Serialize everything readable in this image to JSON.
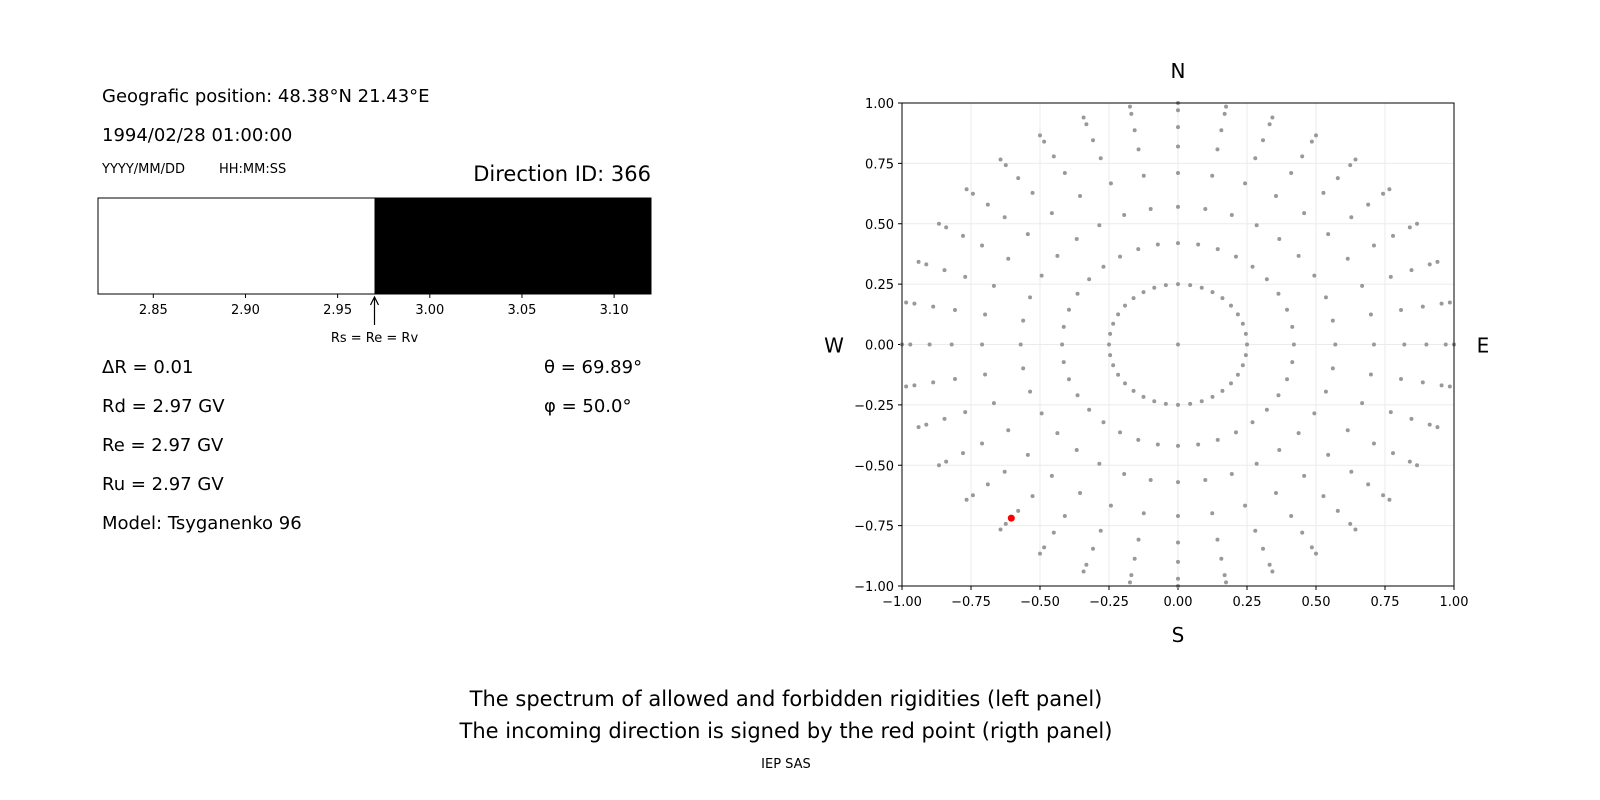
{
  "header": {
    "position": "Geografic position: 48.38°N 21.43°E",
    "datetime": "1994/02/28 01:00:00",
    "date_format": "YYYY/MM/DD",
    "time_format": "HH:MM:SS",
    "direction_id": "Direction ID: 366"
  },
  "parameters": {
    "left": [
      "ΔR = 0.01",
      "Rd = 2.97 GV",
      "Re = 2.97 GV",
      "Ru = 2.97 GV",
      "Model: Tsyganenko 96"
    ],
    "right": [
      "θ = 69.89°",
      "φ = 50.0°"
    ]
  },
  "chart_data": [
    {
      "type": "spectrum",
      "segments": [
        {
          "from": 2.82,
          "to": 2.97,
          "color": "#ffffff"
        },
        {
          "from": 2.97,
          "to": 3.12,
          "color": "#000000"
        }
      ],
      "xlim": [
        2.82,
        3.12
      ],
      "xticks": [
        2.85,
        {
          "value": 2.9,
          "label": "2.90"
        },
        2.95,
        {
          "value": 3,
          "label": "3.00"
        },
        3.05,
        {
          "value": 3.1,
          "label": "3.10"
        }
      ],
      "annotation": {
        "text": "Rs = Re = Rv",
        "x": 2.97
      }
    },
    {
      "type": "scatter",
      "color": "#999999",
      "x": [
        0,
        0.25,
        0.42,
        0.57,
        0.71,
        0.82,
        0.9,
        0.97,
        1,
        0.246,
        0.414,
        0.561,
        0.699,
        0.808,
        0.887,
        0.955,
        0.985,
        0.235,
        0.395,
        0.536,
        0.667,
        0.771,
        0.846,
        0.912,
        0.94,
        0.217,
        0.364,
        0.494,
        0.615,
        0.71,
        0.779,
        0.84,
        0.866,
        0.192,
        0.322,
        0.437,
        0.544,
        0.628,
        0.689,
        0.743,
        0.766,
        0.161,
        0.27,
        0.367,
        0.457,
        0.527,
        0.579,
        0.624,
        0.643,
        0.125,
        0.21,
        0.285,
        0.355,
        0.41,
        0.45,
        0.485,
        0.5,
        0.086,
        0.144,
        0.195,
        0.243,
        0.28,
        0.308,
        0.332,
        0.342,
        0.044,
        0.073,
        0.099,
        0.124,
        0.143,
        0.157,
        0.169,
        0.174,
        0,
        0,
        0,
        0,
        0,
        0,
        0,
        0,
        -0.044,
        -0.073,
        -0.099,
        -0.124,
        -0.143,
        -0.157,
        -0.169,
        -0.174,
        -0.086,
        -0.144,
        -0.195,
        -0.243,
        -0.28,
        -0.308,
        -0.332,
        -0.342,
        -0.125,
        -0.21,
        -0.285,
        -0.355,
        -0.41,
        -0.45,
        -0.485,
        -0.5,
        -0.161,
        -0.27,
        -0.367,
        -0.457,
        -0.527,
        -0.579,
        -0.624,
        -0.643,
        -0.192,
        -0.322,
        -0.437,
        -0.544,
        -0.628,
        -0.689,
        -0.743,
        -0.766,
        -0.217,
        -0.364,
        -0.494,
        -0.615,
        -0.71,
        -0.779,
        -0.84,
        -0.866,
        -0.235,
        -0.395,
        -0.536,
        -0.667,
        -0.771,
        -0.846,
        -0.912,
        -0.94,
        -0.246,
        -0.414,
        -0.561,
        -0.699,
        -0.808,
        -0.887,
        -0.955,
        -0.985,
        -0.25,
        -0.42,
        -0.57,
        -0.71,
        -0.82,
        -0.9,
        -0.97,
        -1,
        -0.246,
        -0.414,
        -0.561,
        -0.699,
        -0.808,
        -0.887,
        -0.955,
        -0.985,
        -0.235,
        -0.395,
        -0.536,
        -0.667,
        -0.771,
        -0.846,
        -0.912,
        -0.94,
        -0.217,
        -0.364,
        -0.494,
        -0.615,
        -0.71,
        -0.779,
        -0.84,
        -0.866,
        -0.192,
        -0.322,
        -0.437,
        -0.544,
        -0.628,
        -0.689,
        -0.743,
        -0.766,
        -0.161,
        -0.27,
        -0.367,
        -0.457,
        -0.527,
        -0.579,
        -0.624,
        -0.643,
        -0.125,
        -0.21,
        -0.285,
        -0.355,
        -0.41,
        -0.45,
        -0.485,
        -0.5,
        -0.086,
        -0.144,
        -0.195,
        -0.243,
        -0.28,
        -0.308,
        -0.332,
        -0.342,
        -0.044,
        -0.073,
        -0.099,
        -0.124,
        -0.143,
        -0.157,
        -0.169,
        -0.174,
        0,
        0,
        0,
        0,
        0,
        0,
        0,
        0,
        0.044,
        0.073,
        0.099,
        0.124,
        0.143,
        0.157,
        0.169,
        0.174,
        0.086,
        0.144,
        0.195,
        0.243,
        0.28,
        0.308,
        0.332,
        0.342,
        0.125,
        0.21,
        0.285,
        0.355,
        0.41,
        0.45,
        0.485,
        0.5,
        0.161,
        0.27,
        0.367,
        0.457,
        0.527,
        0.579,
        0.624,
        0.643,
        0.192,
        0.322,
        0.437,
        0.544,
        0.628,
        0.689,
        0.743,
        0.766,
        0.217,
        0.364,
        0.494,
        0.615,
        0.71,
        0.779,
        0.84,
        0.866,
        0.235,
        0.395,
        0.536,
        0.667,
        0.771,
        0.846,
        0.912,
        0.94,
        0.246,
        0.414,
        0.561,
        0.699,
        0.808,
        0.887,
        0.955,
        0.985
      ],
      "y": [
        0,
        0,
        0,
        0,
        0,
        0,
        0,
        0,
        0,
        0.044,
        0.073,
        0.099,
        0.124,
        0.143,
        0.157,
        0.169,
        0.174,
        0.086,
        0.144,
        0.195,
        0.243,
        0.28,
        0.308,
        0.332,
        0.342,
        0.125,
        0.21,
        0.285,
        0.355,
        0.41,
        0.45,
        0.485,
        0.5,
        0.161,
        0.27,
        0.367,
        0.457,
        0.527,
        0.579,
        0.624,
        0.643,
        0.192,
        0.322,
        0.437,
        0.544,
        0.628,
        0.689,
        0.743,
        0.766,
        0.217,
        0.364,
        0.494,
        0.615,
        0.71,
        0.779,
        0.84,
        0.866,
        0.235,
        0.395,
        0.536,
        0.667,
        0.771,
        0.846,
        0.912,
        0.94,
        0.246,
        0.414,
        0.561,
        0.699,
        0.808,
        0.887,
        0.955,
        0.985,
        0.25,
        0.42,
        0.57,
        0.71,
        0.82,
        0.9,
        0.97,
        1,
        0.246,
        0.414,
        0.561,
        0.699,
        0.808,
        0.887,
        0.955,
        0.985,
        0.235,
        0.395,
        0.536,
        0.667,
        0.771,
        0.846,
        0.912,
        0.94,
        0.217,
        0.364,
        0.494,
        0.615,
        0.71,
        0.779,
        0.84,
        0.866,
        0.192,
        0.322,
        0.437,
        0.544,
        0.628,
        0.689,
        0.743,
        0.766,
        0.161,
        0.27,
        0.367,
        0.457,
        0.527,
        0.579,
        0.624,
        0.643,
        0.125,
        0.21,
        0.285,
        0.355,
        0.41,
        0.45,
        0.485,
        0.5,
        0.086,
        0.144,
        0.195,
        0.243,
        0.28,
        0.308,
        0.332,
        0.342,
        0.044,
        0.073,
        0.099,
        0.124,
        0.143,
        0.157,
        0.169,
        0.174,
        0,
        0,
        0,
        0,
        0,
        0,
        0,
        0,
        -0.044,
        -0.073,
        -0.099,
        -0.124,
        -0.143,
        -0.157,
        -0.169,
        -0.174,
        -0.086,
        -0.144,
        -0.195,
        -0.243,
        -0.28,
        -0.308,
        -0.332,
        -0.342,
        -0.125,
        -0.21,
        -0.285,
        -0.355,
        -0.41,
        -0.45,
        -0.485,
        -0.5,
        -0.161,
        -0.27,
        -0.367,
        -0.457,
        -0.527,
        -0.579,
        -0.624,
        -0.643,
        -0.192,
        -0.322,
        -0.437,
        -0.544,
        -0.628,
        -0.689,
        -0.743,
        -0.766,
        -0.217,
        -0.364,
        -0.494,
        -0.615,
        -0.71,
        -0.779,
        -0.84,
        -0.866,
        -0.235,
        -0.395,
        -0.536,
        -0.667,
        -0.771,
        -0.846,
        -0.912,
        -0.94,
        -0.246,
        -0.414,
        -0.561,
        -0.699,
        -0.808,
        -0.887,
        -0.955,
        -0.985,
        -0.25,
        -0.42,
        -0.57,
        -0.71,
        -0.82,
        -0.9,
        -0.97,
        -1,
        -0.246,
        -0.414,
        -0.561,
        -0.699,
        -0.808,
        -0.887,
        -0.955,
        -0.985,
        -0.235,
        -0.395,
        -0.536,
        -0.667,
        -0.771,
        -0.846,
        -0.912,
        -0.94,
        -0.217,
        -0.364,
        -0.494,
        -0.615,
        -0.71,
        -0.779,
        -0.84,
        -0.866,
        -0.192,
        -0.322,
        -0.437,
        -0.544,
        -0.628,
        -0.689,
        -0.743,
        -0.766,
        -0.161,
        -0.27,
        -0.367,
        -0.457,
        -0.527,
        -0.579,
        -0.624,
        -0.643,
        -0.125,
        -0.21,
        -0.285,
        -0.355,
        -0.41,
        -0.45,
        -0.485,
        -0.5,
        -0.086,
        -0.144,
        -0.195,
        -0.243,
        -0.28,
        -0.308,
        -0.332,
        -0.342,
        -0.044,
        -0.073,
        -0.099,
        -0.124,
        -0.143,
        -0.157,
        -0.169,
        -0.174
      ],
      "highlight": {
        "x": -0.604,
        "y": -0.719,
        "color": "#ff0000"
      },
      "xlim": [
        -1,
        1
      ],
      "ylim": [
        -1,
        1
      ],
      "xticks": [
        {
          "value": -1,
          "label": "−1.00"
        },
        {
          "value": -0.75,
          "label": "−0.75"
        },
        {
          "value": -0.5,
          "label": "−0.50"
        },
        {
          "value": -0.25,
          "label": "−0.25"
        },
        {
          "value": 0,
          "label": "0.00"
        },
        {
          "value": 0.25,
          "label": "0.25"
        },
        {
          "value": 0.5,
          "label": "0.50"
        },
        {
          "value": 0.75,
          "label": "0.75"
        },
        {
          "value": 1,
          "label": "1.00"
        }
      ],
      "yticks": [
        {
          "value": -1,
          "label": "−1.00"
        },
        {
          "value": -0.75,
          "label": "−0.75"
        },
        {
          "value": -0.5,
          "label": "−0.50"
        },
        {
          "value": -0.25,
          "label": "−0.25"
        },
        {
          "value": 0,
          "label": "0.00"
        },
        {
          "value": 0.25,
          "label": "0.25"
        },
        {
          "value": 0.5,
          "label": "0.50"
        },
        {
          "value": 0.75,
          "label": "0.75"
        },
        {
          "value": 1,
          "label": "1.00"
        }
      ],
      "grid": true,
      "compass": {
        "top": "N",
        "bottom": "S",
        "left": "W",
        "right": "E"
      }
    }
  ],
  "caption": [
    "The spectrum of allowed and forbidden rigidities (left panel)",
    "The incoming direction is signed by the red point (rigth panel)"
  ],
  "footer": "IEP SAS"
}
